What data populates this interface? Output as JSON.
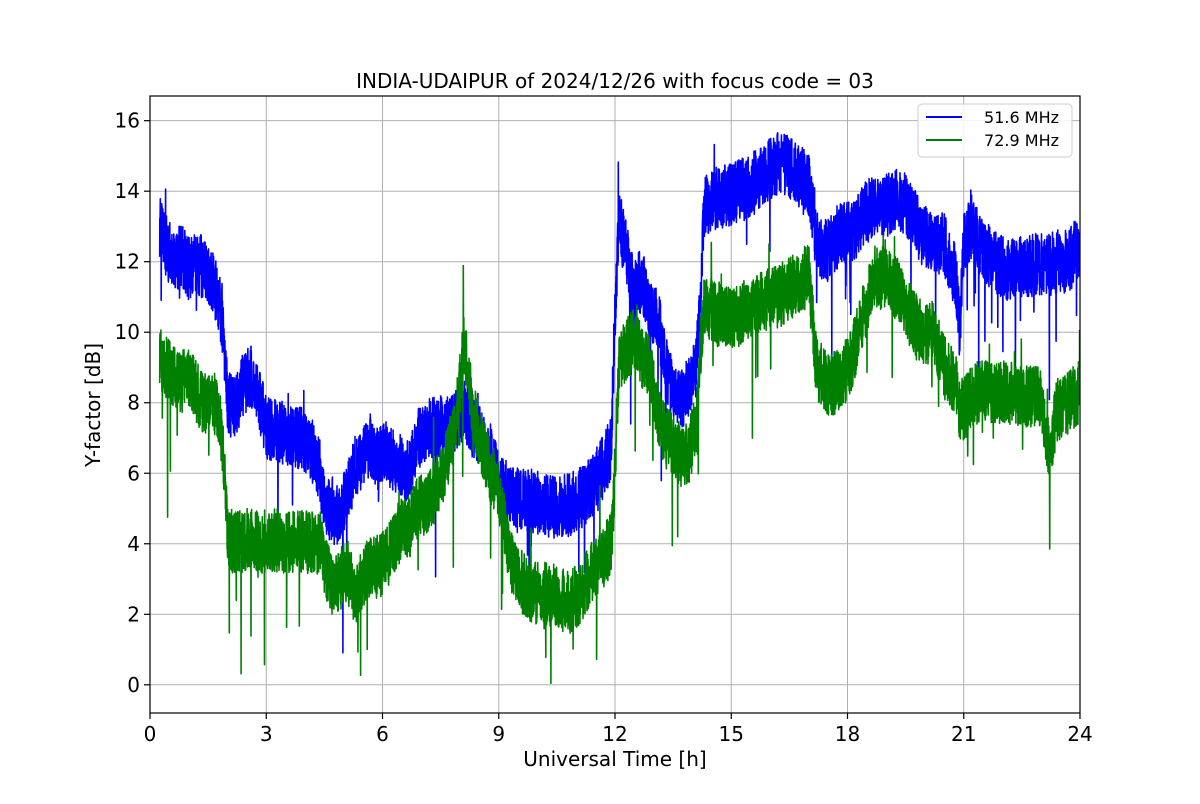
{
  "chart_data": {
    "type": "line",
    "title": "INDIA-UDAIPUR of 2024/12/26 with focus code = 03",
    "xlabel": "Universal Time [h]",
    "ylabel": "Y-factor [dB]",
    "xlim": [
      0,
      24
    ],
    "ylim": [
      -0.8,
      16.7
    ],
    "xticks": [
      0,
      3,
      6,
      9,
      12,
      15,
      18,
      21,
      24
    ],
    "xtick_labels": [
      "0",
      "3",
      "6",
      "9",
      "12",
      "15",
      "18",
      "21",
      "24"
    ],
    "yticks": [
      0,
      2,
      4,
      6,
      8,
      10,
      12,
      14,
      16
    ],
    "ytick_labels": [
      "0",
      "2",
      "4",
      "6",
      "8",
      "10",
      "12",
      "14",
      "16"
    ],
    "grid": true,
    "legend_position": "top-right",
    "series": [
      {
        "name": "51.6 MHz",
        "color": "#0000ff",
        "noise_db": 0.9,
        "x": [
          0.25,
          0.4,
          0.6,
          0.8,
          1.0,
          1.2,
          1.4,
          1.6,
          1.8,
          1.9,
          2.0,
          2.2,
          2.4,
          2.6,
          2.8,
          3.0,
          3.3,
          3.6,
          3.9,
          4.2,
          4.4,
          4.5,
          4.7,
          4.9,
          5.1,
          5.3,
          5.5,
          5.7,
          5.9,
          6.1,
          6.3,
          6.5,
          6.7,
          6.9,
          7.2,
          7.5,
          7.8,
          8.0,
          8.1,
          8.3,
          8.5,
          8.8,
          9.0,
          9.3,
          9.6,
          9.9,
          10.2,
          10.5,
          10.8,
          11.1,
          11.4,
          11.7,
          11.9,
          12.0,
          12.1,
          12.3,
          12.5,
          12.7,
          12.9,
          13.1,
          13.3,
          13.5,
          13.7,
          13.9,
          14.1,
          14.2,
          14.3,
          14.6,
          15.0,
          15.4,
          15.8,
          16.2,
          16.6,
          17.0,
          17.2,
          17.5,
          17.8,
          18.1,
          18.4,
          18.7,
          19.0,
          19.3,
          19.6,
          19.9,
          20.2,
          20.5,
          20.8,
          20.9,
          21.0,
          21.2,
          21.5,
          21.8,
          22.1,
          22.4,
          22.7,
          23.0,
          23.2,
          23.4,
          23.7,
          24.0
        ],
        "y": [
          13.0,
          12.5,
          12.0,
          12.2,
          11.8,
          12.0,
          11.8,
          11.5,
          10.8,
          10.0,
          8.0,
          7.8,
          8.5,
          8.8,
          8.2,
          7.3,
          7.2,
          7.1,
          7.0,
          6.6,
          6.0,
          5.0,
          5.0,
          4.8,
          5.5,
          6.2,
          6.5,
          6.8,
          6.4,
          6.6,
          6.3,
          6.2,
          6.0,
          7.0,
          7.3,
          7.3,
          7.4,
          7.6,
          7.8,
          7.5,
          7.0,
          6.5,
          5.8,
          5.4,
          5.3,
          5.2,
          5.1,
          5.0,
          5.1,
          5.3,
          5.6,
          6.2,
          6.7,
          10.5,
          13.2,
          12.2,
          11.2,
          11.5,
          10.5,
          10.5,
          9.0,
          8.5,
          8.0,
          8.5,
          9.0,
          11.0,
          13.5,
          13.8,
          13.9,
          14.1,
          14.4,
          14.8,
          14.6,
          14.2,
          12.5,
          12.3,
          12.8,
          12.8,
          13.3,
          13.6,
          13.6,
          13.8,
          13.5,
          12.8,
          12.5,
          12.5,
          11.5,
          10.0,
          12.5,
          13.0,
          12.3,
          12.0,
          11.8,
          11.8,
          11.9,
          11.9,
          11.9,
          12.0,
          12.0,
          12.5
        ]
      },
      {
        "name": "72.9 MHz",
        "color": "#008000",
        "noise_db": 0.9,
        "x": [
          0.25,
          0.4,
          0.6,
          0.8,
          1.0,
          1.2,
          1.4,
          1.6,
          1.8,
          1.9,
          2.0,
          2.2,
          2.4,
          2.6,
          2.8,
          3.0,
          3.3,
          3.6,
          3.9,
          4.2,
          4.4,
          4.5,
          4.7,
          4.9,
          5.1,
          5.3,
          5.5,
          5.7,
          5.9,
          6.1,
          6.3,
          6.5,
          6.7,
          6.9,
          7.2,
          7.5,
          7.8,
          8.0,
          8.1,
          8.3,
          8.5,
          8.8,
          9.0,
          9.3,
          9.6,
          9.9,
          10.2,
          10.5,
          10.8,
          11.1,
          11.4,
          11.7,
          11.9,
          12.0,
          12.1,
          12.3,
          12.5,
          12.7,
          12.9,
          13.1,
          13.3,
          13.5,
          13.7,
          13.9,
          14.1,
          14.2,
          14.3,
          14.6,
          15.0,
          15.4,
          15.8,
          16.2,
          16.6,
          17.0,
          17.2,
          17.5,
          17.8,
          18.1,
          18.4,
          18.7,
          19.0,
          19.3,
          19.6,
          19.9,
          20.2,
          20.5,
          20.8,
          20.9,
          21.0,
          21.2,
          21.5,
          21.8,
          22.1,
          22.4,
          22.7,
          23.0,
          23.2,
          23.4,
          23.7,
          24.0
        ],
        "y": [
          9.3,
          9.0,
          8.8,
          8.6,
          8.7,
          8.3,
          8.0,
          8.2,
          7.5,
          6.5,
          4.2,
          4.0,
          4.1,
          4.2,
          4.0,
          4.1,
          4.1,
          4.0,
          4.1,
          4.0,
          4.0,
          3.3,
          2.9,
          3.0,
          3.2,
          2.6,
          2.9,
          3.5,
          3.3,
          3.6,
          4.0,
          4.5,
          4.5,
          5.0,
          5.2,
          5.8,
          7.0,
          8.5,
          9.8,
          8.0,
          7.0,
          6.0,
          5.5,
          3.5,
          2.9,
          2.6,
          2.6,
          2.5,
          2.3,
          2.6,
          3.2,
          3.6,
          4.0,
          6.0,
          9.2,
          9.5,
          9.8,
          9.3,
          9.0,
          7.8,
          7.0,
          6.8,
          6.5,
          6.5,
          7.5,
          9.5,
          10.8,
          10.5,
          10.4,
          10.6,
          10.9,
          11.0,
          11.3,
          11.6,
          9.0,
          8.5,
          8.6,
          9.2,
          10.5,
          11.6,
          11.5,
          11.2,
          10.5,
          10.0,
          10.0,
          9.0,
          8.5,
          7.8,
          7.8,
          8.2,
          8.4,
          8.3,
          8.3,
          8.2,
          8.2,
          8.2,
          6.5,
          7.8,
          8.0,
          8.3
        ]
      }
    ]
  }
}
